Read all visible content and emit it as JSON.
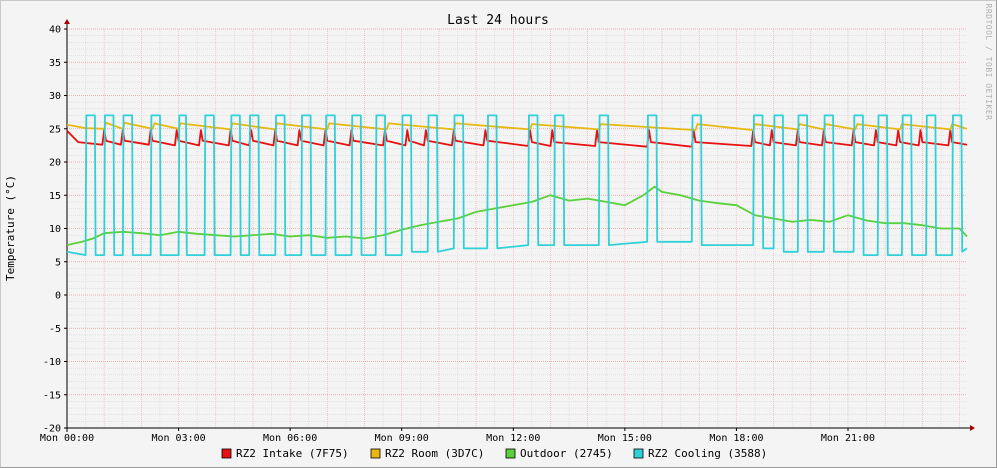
{
  "chart_data": {
    "type": "line",
    "title": "Last 24 hours",
    "ylabel": "Temperature (°C)",
    "xlabel": "",
    "watermark": "RRDTOOL / TOBI OETIKER",
    "ylim": [
      -20,
      40
    ],
    "yticks": [
      -20,
      -15,
      -10,
      -5,
      0,
      5,
      10,
      15,
      20,
      25,
      30,
      35,
      40
    ],
    "xlim": [
      0,
      24.2
    ],
    "xticks": [
      {
        "h": 0,
        "label": "Mon 00:00"
      },
      {
        "h": 3,
        "label": "Mon 03:00"
      },
      {
        "h": 6,
        "label": "Mon 06:00"
      },
      {
        "h": 9,
        "label": "Mon 09:00"
      },
      {
        "h": 12,
        "label": "Mon 12:00"
      },
      {
        "h": 15,
        "label": "Mon 15:00"
      },
      {
        "h": 18,
        "label": "Mon 18:00"
      },
      {
        "h": 21,
        "label": "Mon 21:00"
      }
    ],
    "grid": true,
    "legend_position": "bottom",
    "x_unit": "hours since Mon 00:00",
    "series": [
      {
        "name": "RZ2 Intake (7F75)",
        "color": "#e81010",
        "x": [
          0,
          0.3,
          0.6,
          0.95,
          1.0,
          1.05,
          1.45,
          1.5,
          1.55,
          2.2,
          2.25,
          2.3,
          2.9,
          2.95,
          3.0,
          3.55,
          3.6,
          3.65,
          4.35,
          4.4,
          4.45,
          4.9,
          4.95,
          5.0,
          5.55,
          5.6,
          5.65,
          6.2,
          6.25,
          6.3,
          6.9,
          6.95,
          7.0,
          7.6,
          7.65,
          7.7,
          8.5,
          8.55,
          8.6,
          9.1,
          9.15,
          9.2,
          9.6,
          9.65,
          9.7,
          10.35,
          10.4,
          10.45,
          11.2,
          11.25,
          11.3,
          12.4,
          12.45,
          12.5,
          13.0,
          13.05,
          13.1,
          14.2,
          14.25,
          14.3,
          15.6,
          15.65,
          15.7,
          16.8,
          16.85,
          16.9,
          18.4,
          18.45,
          18.5,
          18.9,
          18.95,
          19.0,
          19.6,
          19.65,
          19.7,
          20.3,
          20.35,
          20.4,
          21.1,
          21.15,
          21.2,
          21.7,
          21.75,
          21.8,
          22.3,
          22.35,
          22.4,
          22.9,
          22.95,
          23.0,
          23.7,
          23.75,
          23.8,
          24.2
        ],
        "y": [
          24.7,
          23.0,
          22.8,
          22.6,
          24.8,
          23.2,
          22.6,
          24.8,
          23.2,
          22.6,
          24.8,
          23.2,
          22.5,
          24.8,
          23.2,
          22.5,
          24.8,
          23.2,
          22.5,
          24.8,
          23.2,
          22.5,
          24.8,
          23.2,
          22.5,
          24.8,
          23.2,
          22.5,
          24.8,
          23.2,
          22.5,
          24.8,
          23.2,
          22.5,
          24.8,
          23.2,
          22.5,
          24.8,
          23.2,
          22.5,
          24.8,
          23.2,
          22.5,
          24.8,
          23.2,
          22.5,
          24.8,
          23.2,
          22.5,
          24.8,
          23.2,
          22.4,
          24.8,
          23.0,
          22.4,
          24.8,
          23.0,
          22.4,
          24.8,
          23.0,
          22.3,
          24.8,
          23.0,
          22.3,
          24.8,
          23.0,
          22.4,
          24.8,
          23.0,
          22.5,
          24.8,
          23.0,
          22.5,
          24.8,
          23.0,
          22.5,
          24.8,
          23.0,
          22.5,
          24.8,
          23.0,
          22.5,
          24.8,
          23.0,
          22.5,
          24.8,
          23.0,
          22.5,
          24.8,
          23.0,
          22.5,
          24.8,
          23.0,
          22.6
        ]
      },
      {
        "name": "RZ2 Room (3D7C)",
        "color": "#e8b810",
        "x": [
          0,
          0.5,
          1.0,
          1.05,
          1.5,
          1.55,
          2.3,
          2.35,
          3.0,
          3.05,
          4.4,
          4.45,
          5.6,
          5.65,
          7.0,
          7.05,
          8.6,
          8.65,
          10.4,
          10.45,
          12.45,
          12.5,
          14.3,
          14.35,
          16.9,
          16.95,
          18.45,
          18.5,
          19.65,
          19.7,
          20.35,
          20.4,
          21.2,
          21.25,
          22.4,
          22.45,
          23.75,
          23.8,
          24.2
        ],
        "y": [
          25.6,
          25.1,
          25.0,
          25.9,
          25.0,
          25.9,
          25.0,
          25.8,
          25.0,
          25.8,
          24.9,
          25.8,
          24.9,
          25.8,
          24.9,
          25.8,
          24.9,
          25.8,
          24.9,
          25.8,
          24.9,
          25.7,
          24.9,
          25.7,
          24.8,
          25.7,
          24.8,
          25.7,
          24.9,
          25.7,
          24.9,
          25.7,
          24.9,
          25.7,
          24.9,
          25.7,
          24.9,
          25.7,
          25.0
        ]
      },
      {
        "name": "Outdoor (2745)",
        "color": "#5ad03a",
        "x": [
          0,
          0.4,
          0.7,
          1.0,
          1.5,
          2.0,
          2.5,
          3.0,
          3.5,
          4.0,
          4.5,
          5.0,
          5.5,
          6.0,
          6.5,
          7.0,
          7.5,
          8.0,
          8.5,
          9.0,
          9.5,
          10.0,
          10.5,
          11.0,
          11.5,
          12.0,
          12.5,
          13.0,
          13.5,
          14.0,
          14.5,
          15.0,
          15.5,
          15.8,
          16.0,
          16.5,
          17.0,
          17.5,
          18.0,
          18.5,
          19.0,
          19.5,
          20.0,
          20.5,
          21.0,
          21.5,
          22.0,
          22.5,
          23.0,
          23.5,
          24.0,
          24.2
        ],
        "y": [
          7.5,
          8.0,
          8.5,
          9.3,
          9.5,
          9.3,
          9.0,
          9.5,
          9.2,
          9.0,
          8.8,
          9.0,
          9.2,
          8.8,
          9.0,
          8.6,
          8.8,
          8.5,
          9.0,
          9.8,
          10.5,
          11.0,
          11.5,
          12.5,
          13.0,
          13.5,
          14.0,
          15.0,
          14.2,
          14.5,
          14.0,
          13.5,
          15.0,
          16.3,
          15.5,
          15.0,
          14.2,
          13.8,
          13.5,
          12.0,
          11.5,
          11.0,
          11.3,
          11.0,
          12.0,
          11.2,
          10.8,
          10.8,
          10.5,
          10.0,
          10.0,
          8.8
        ]
      },
      {
        "name": "RZ2 Cooling (3588)",
        "color": "#30d0d8",
        "x": [
          0.0,
          0.5,
          0.52,
          0.75,
          0.77,
          1.0,
          1.02,
          1.25,
          1.27,
          1.5,
          1.52,
          1.75,
          1.77,
          2.25,
          2.27,
          2.5,
          2.52,
          3.0,
          3.02,
          3.2,
          3.22,
          3.7,
          3.72,
          3.95,
          3.97,
          4.4,
          4.42,
          4.65,
          4.67,
          4.9,
          4.92,
          5.15,
          5.17,
          5.6,
          5.62,
          5.85,
          5.87,
          6.3,
          6.32,
          6.55,
          6.57,
          6.95,
          6.97,
          7.2,
          7.22,
          7.65,
          7.67,
          7.9,
          7.92,
          8.3,
          8.32,
          8.55,
          8.57,
          9.0,
          9.02,
          9.25,
          9.27,
          9.7,
          9.72,
          9.95,
          9.97,
          10.4,
          10.42,
          10.65,
          10.67,
          11.3,
          11.32,
          11.55,
          11.57,
          12.4,
          12.42,
          12.65,
          12.67,
          13.1,
          13.12,
          13.35,
          13.37,
          14.3,
          14.32,
          14.55,
          14.57,
          15.6,
          15.62,
          15.85,
          15.87,
          16.8,
          16.82,
          17.05,
          17.07,
          18.45,
          18.47,
          18.7,
          18.72,
          19.0,
          19.02,
          19.25,
          19.27,
          19.65,
          19.67,
          19.9,
          19.92,
          20.35,
          20.37,
          20.6,
          20.62,
          21.15,
          21.17,
          21.4,
          21.42,
          21.8,
          21.82,
          22.05,
          22.07,
          22.45,
          22.47,
          22.7,
          22.72,
          23.1,
          23.12,
          23.35,
          23.37,
          23.8,
          23.82,
          24.05,
          24.07,
          24.2
        ],
        "y": [
          6.5,
          6.0,
          27.0,
          27.0,
          6.0,
          6.0,
          27.0,
          27.0,
          6.0,
          6.0,
          27.0,
          27.0,
          6.0,
          6.0,
          27.0,
          27.0,
          6.0,
          6.0,
          27.0,
          27.0,
          6.0,
          6.0,
          27.0,
          27.0,
          6.0,
          6.0,
          27.0,
          27.0,
          6.0,
          6.0,
          27.0,
          27.0,
          6.0,
          6.0,
          27.0,
          27.0,
          6.0,
          6.0,
          27.0,
          27.0,
          6.0,
          6.0,
          27.0,
          27.0,
          6.0,
          6.0,
          27.0,
          27.0,
          6.0,
          6.0,
          27.0,
          27.0,
          6.0,
          6.0,
          27.0,
          27.0,
          6.5,
          6.5,
          27.0,
          27.0,
          6.5,
          7.0,
          27.0,
          27.0,
          7.0,
          7.0,
          27.0,
          27.0,
          7.0,
          7.5,
          27.0,
          27.0,
          7.5,
          7.5,
          27.0,
          27.0,
          7.5,
          7.5,
          27.0,
          27.0,
          7.5,
          8.0,
          27.0,
          27.0,
          8.0,
          8.0,
          27.0,
          27.0,
          7.5,
          7.5,
          27.0,
          27.0,
          7.0,
          7.0,
          27.0,
          27.0,
          6.5,
          6.5,
          27.0,
          27.0,
          6.5,
          6.5,
          27.0,
          27.0,
          6.5,
          6.5,
          27.0,
          27.0,
          6.0,
          6.0,
          27.0,
          27.0,
          6.0,
          6.0,
          27.0,
          27.0,
          6.0,
          6.0,
          27.0,
          27.0,
          6.0,
          6.0,
          27.0,
          27.0,
          6.5,
          7.0
        ]
      }
    ]
  }
}
